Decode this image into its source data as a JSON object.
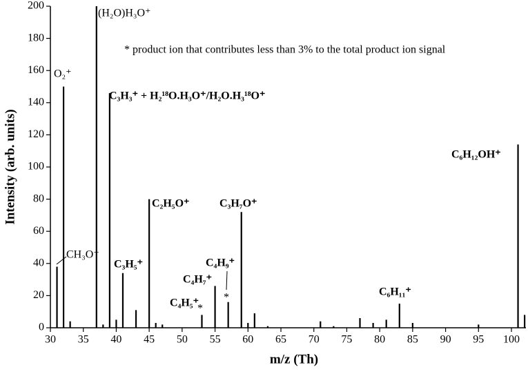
{
  "chart_data": {
    "type": "stem",
    "xlabel": "m/z (Th)",
    "ylabel": "Intensity (arb. units)",
    "x": [
      31,
      32,
      33,
      37,
      38,
      39,
      40,
      41,
      43,
      45,
      46,
      47,
      53,
      55,
      57,
      59,
      60,
      61,
      63,
      71,
      73,
      77,
      79,
      81,
      83,
      85,
      95,
      101,
      102
    ],
    "values": [
      38,
      150,
      4,
      200,
      2,
      146,
      5,
      34,
      11,
      80,
      3,
      2,
      8,
      26,
      16,
      72,
      3,
      9,
      1,
      4,
      1,
      6,
      3,
      5,
      15,
      3,
      2,
      114,
      8
    ],
    "color": "#000000",
    "xlim": [
      30,
      102.2
    ],
    "ylim": [
      0,
      200
    ],
    "xticks": [
      30,
      35,
      40,
      45,
      50,
      55,
      60,
      65,
      70,
      75,
      80,
      85,
      90,
      95,
      100
    ],
    "yticks": [
      0,
      20,
      40,
      60,
      80,
      100,
      120,
      140,
      160,
      180,
      200
    ],
    "annotations": [
      "(H₂O)H₃O⁺",
      "O₂⁺",
      "C₃H₃⁺ + H₂¹⁸O.H₃O⁺/H₂O.H₃¹⁸O⁺",
      "* product ion that contributes less than 3% to the total product ion signal",
      "C₆H₁₂OH⁺",
      "CH₃O⁺",
      "C₂H₅O⁺",
      "C₃H₇O⁺",
      "C₃H₅⁺",
      "C₄H₉⁺",
      "C₄H₇⁺",
      "C₄H₅⁺",
      "*",
      "*",
      "C₆H₁₁⁺"
    ]
  }
}
